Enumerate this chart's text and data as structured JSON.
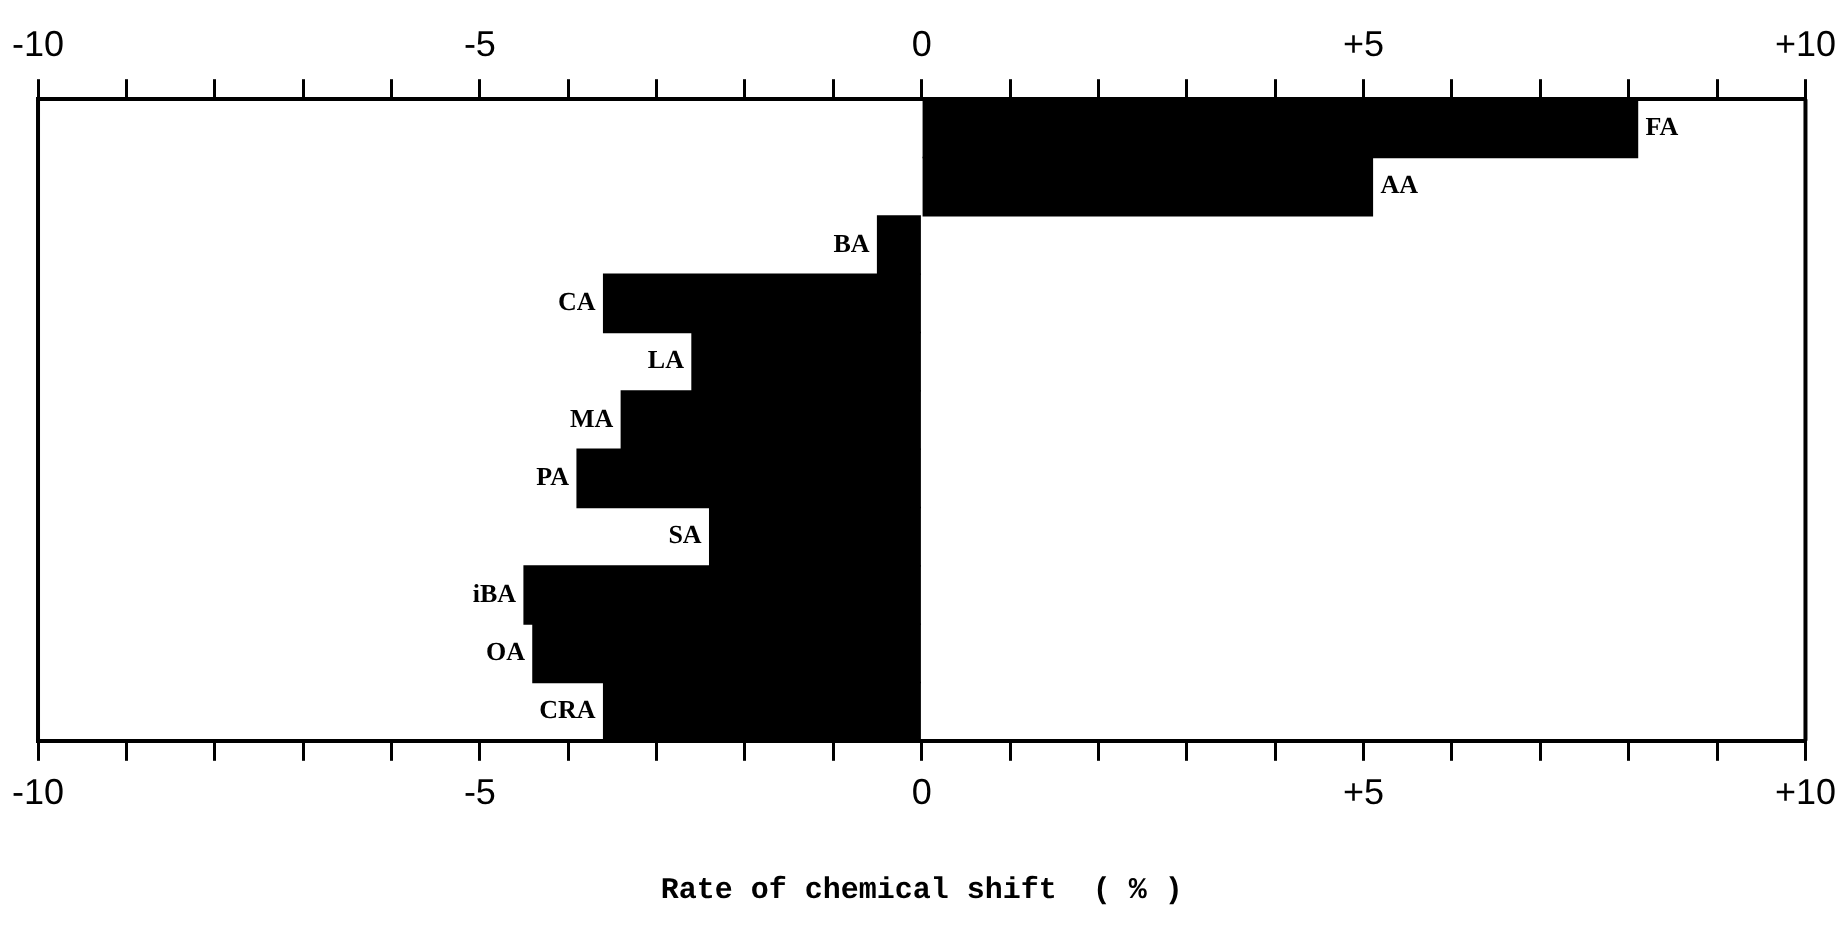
{
  "chart_data": {
    "type": "bar",
    "orientation": "horizontal",
    "xlabel": "Rate of chemical shift  ( % )",
    "categories": [
      "FA",
      "AA",
      "BA",
      "CA",
      "LA",
      "MA",
      "PA",
      "SA",
      "iBA",
      "OA",
      "CRA"
    ],
    "values": [
      8.1,
      5.1,
      -0.5,
      -3.6,
      -2.6,
      -3.4,
      -3.9,
      -2.4,
      -4.5,
      -4.4,
      -3.6
    ],
    "color": "#000000",
    "xlim": [
      -10,
      10
    ],
    "xticks": [
      {
        "value": -10,
        "label": "-10"
      },
      {
        "value": -9,
        "label": null
      },
      {
        "value": -8,
        "label": null
      },
      {
        "value": -7,
        "label": null
      },
      {
        "value": -6,
        "label": null
      },
      {
        "value": -5,
        "label": "-5"
      },
      {
        "value": -4,
        "label": null
      },
      {
        "value": -3,
        "label": null
      },
      {
        "value": -2,
        "label": null
      },
      {
        "value": -1,
        "label": null
      },
      0,
      {
        "value": 1,
        "label": null
      },
      {
        "value": 2,
        "label": null
      },
      {
        "value": 3,
        "label": null
      },
      {
        "value": 4,
        "label": null
      },
      {
        "value": 5,
        "label": "+5"
      },
      {
        "value": 6,
        "label": null
      },
      {
        "value": 7,
        "label": null
      },
      {
        "value": 8,
        "label": null
      },
      {
        "value": 9,
        "label": null
      },
      {
        "value": 10,
        "label": "+10"
      }
    ],
    "x2lim": [
      -10,
      10
    ],
    "x2ticks": [
      {
        "value": -10,
        "label": "-10"
      },
      {
        "value": -9,
        "label": null
      },
      {
        "value": -8,
        "label": null
      },
      {
        "value": -7,
        "label": null
      },
      {
        "value": -6,
        "label": null
      },
      {
        "value": -5,
        "label": "-5"
      },
      {
        "value": -4,
        "label": null
      },
      {
        "value": -3,
        "label": null
      },
      {
        "value": -2,
        "label": null
      },
      {
        "value": -1,
        "label": null
      },
      0,
      {
        "value": 1,
        "label": null
      },
      {
        "value": 2,
        "label": null
      },
      {
        "value": 3,
        "label": null
      },
      {
        "value": 4,
        "label": null
      },
      {
        "value": 5,
        "label": "+5"
      },
      {
        "value": 6,
        "label": null
      },
      {
        "value": 7,
        "label": null
      },
      {
        "value": 8,
        "label": null
      },
      {
        "value": 9,
        "label": null
      },
      {
        "value": 10,
        "label": "+10"
      }
    ],
    "grid": false,
    "legend": false
  }
}
